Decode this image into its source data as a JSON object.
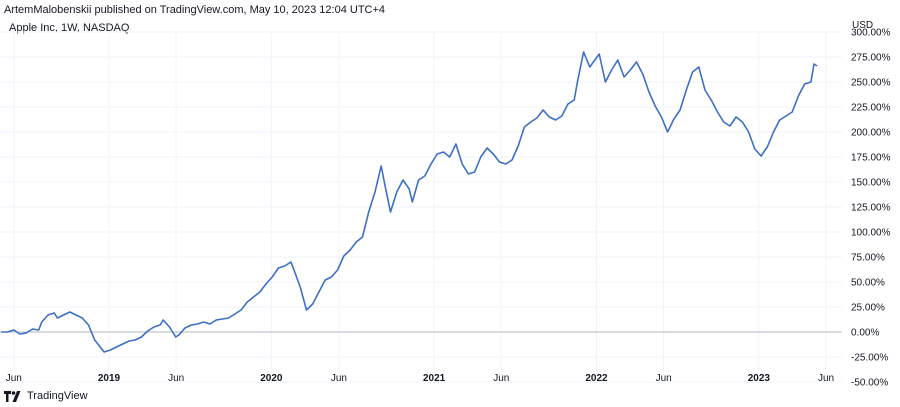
{
  "header": {
    "published_by": "ArtemMalobenskii published on TradingView.com, May 10, 2023 12:04 UTC+4"
  },
  "footer": {
    "brand": "TradingView",
    "brand_icon": "tradingview-logo-icon"
  },
  "chart_data": {
    "type": "line",
    "title": "Apple Inc, 1W, NASDAQ",
    "ylabel": "USD",
    "xlabel": "",
    "ylim": [
      -50,
      300
    ],
    "grid": true,
    "y_ticks": [
      "300.00%",
      "275.00%",
      "250.00%",
      "225.00%",
      "200.00%",
      "175.00%",
      "150.00%",
      "125.00%",
      "100.00%",
      "75.00%",
      "50.00%",
      "25.00%",
      "0.00%",
      "-25.00%",
      "-50.00%"
    ],
    "y_tick_values": [
      300,
      275,
      250,
      225,
      200,
      175,
      150,
      125,
      100,
      75,
      50,
      25,
      0,
      -25,
      -50
    ],
    "x_ticks": [
      {
        "label": "Jun",
        "date": "2018-06-01"
      },
      {
        "label": "2019",
        "date": "2019-01-01"
      },
      {
        "label": "Jun",
        "date": "2019-06-01"
      },
      {
        "label": "2020",
        "date": "2020-01-01"
      },
      {
        "label": "Jun",
        "date": "2020-06-01"
      },
      {
        "label": "2021",
        "date": "2021-01-01"
      },
      {
        "label": "Jun",
        "date": "2021-06-01"
      },
      {
        "label": "2022",
        "date": "2022-01-01"
      },
      {
        "label": "Jun",
        "date": "2022-06-01"
      },
      {
        "label": "2023",
        "date": "2023-01-01"
      },
      {
        "label": "Jun",
        "date": "2023-06-01"
      }
    ],
    "line_color": "#3d6fc5",
    "baseline": 0,
    "series": [
      {
        "points": [
          [
            "2018-05-04",
            0
          ],
          [
            "2018-05-18",
            0
          ],
          [
            "2018-06-01",
            2
          ],
          [
            "2018-06-15",
            -2
          ],
          [
            "2018-06-29",
            -1
          ],
          [
            "2018-07-13",
            3
          ],
          [
            "2018-07-27",
            2
          ],
          [
            "2018-08-03",
            10
          ],
          [
            "2018-08-17",
            17
          ],
          [
            "2018-08-31",
            19
          ],
          [
            "2018-09-07",
            14
          ],
          [
            "2018-09-21",
            17
          ],
          [
            "2018-10-05",
            20
          ],
          [
            "2018-10-19",
            17
          ],
          [
            "2018-11-02",
            14
          ],
          [
            "2018-11-16",
            7
          ],
          [
            "2018-11-30",
            -8
          ],
          [
            "2018-12-07",
            -12
          ],
          [
            "2018-12-21",
            -20
          ],
          [
            "2019-01-04",
            -18
          ],
          [
            "2019-01-18",
            -15
          ],
          [
            "2019-02-01",
            -12
          ],
          [
            "2019-02-15",
            -9
          ],
          [
            "2019-03-01",
            -8
          ],
          [
            "2019-03-15",
            -5
          ],
          [
            "2019-03-29",
            1
          ],
          [
            "2019-04-12",
            5
          ],
          [
            "2019-04-26",
            7
          ],
          [
            "2019-05-03",
            12
          ],
          [
            "2019-05-17",
            5
          ],
          [
            "2019-05-31",
            -5
          ],
          [
            "2019-06-07",
            -3
          ],
          [
            "2019-06-21",
            4
          ],
          [
            "2019-07-05",
            7
          ],
          [
            "2019-07-19",
            8
          ],
          [
            "2019-08-02",
            10
          ],
          [
            "2019-08-16",
            8
          ],
          [
            "2019-08-30",
            12
          ],
          [
            "2019-09-13",
            13
          ],
          [
            "2019-09-27",
            14
          ],
          [
            "2019-10-11",
            18
          ],
          [
            "2019-10-25",
            22
          ],
          [
            "2019-11-08",
            30
          ],
          [
            "2019-11-22",
            35
          ],
          [
            "2019-12-06",
            40
          ],
          [
            "2019-12-20",
            48
          ],
          [
            "2020-01-03",
            55
          ],
          [
            "2020-01-17",
            64
          ],
          [
            "2020-01-31",
            66
          ],
          [
            "2020-02-14",
            70
          ],
          [
            "2020-02-21",
            62
          ],
          [
            "2020-03-06",
            45
          ],
          [
            "2020-03-20",
            22
          ],
          [
            "2020-04-03",
            28
          ],
          [
            "2020-04-17",
            40
          ],
          [
            "2020-05-01",
            52
          ],
          [
            "2020-05-15",
            55
          ],
          [
            "2020-05-29",
            62
          ],
          [
            "2020-06-12",
            76
          ],
          [
            "2020-06-26",
            82
          ],
          [
            "2020-07-10",
            90
          ],
          [
            "2020-07-24",
            95
          ],
          [
            "2020-08-07",
            120
          ],
          [
            "2020-08-21",
            140
          ],
          [
            "2020-09-04",
            166
          ],
          [
            "2020-09-11",
            150
          ],
          [
            "2020-09-25",
            120
          ],
          [
            "2020-10-09",
            140
          ],
          [
            "2020-10-23",
            152
          ],
          [
            "2020-11-06",
            143
          ],
          [
            "2020-11-13",
            130
          ],
          [
            "2020-11-27",
            152
          ],
          [
            "2020-12-11",
            156
          ],
          [
            "2020-12-25",
            168
          ],
          [
            "2021-01-08",
            178
          ],
          [
            "2021-01-22",
            180
          ],
          [
            "2021-02-05",
            175
          ],
          [
            "2021-02-19",
            188
          ],
          [
            "2021-03-05",
            168
          ],
          [
            "2021-03-19",
            158
          ],
          [
            "2021-04-02",
            160
          ],
          [
            "2021-04-16",
            175
          ],
          [
            "2021-04-30",
            184
          ],
          [
            "2021-05-14",
            178
          ],
          [
            "2021-05-28",
            170
          ],
          [
            "2021-06-11",
            168
          ],
          [
            "2021-06-25",
            172
          ],
          [
            "2021-07-09",
            186
          ],
          [
            "2021-07-23",
            205
          ],
          [
            "2021-08-06",
            210
          ],
          [
            "2021-08-20",
            214
          ],
          [
            "2021-09-03",
            222
          ],
          [
            "2021-09-17",
            215
          ],
          [
            "2021-10-01",
            212
          ],
          [
            "2021-10-15",
            216
          ],
          [
            "2021-10-29",
            228
          ],
          [
            "2021-11-12",
            232
          ],
          [
            "2021-11-19",
            250
          ],
          [
            "2021-12-03",
            280
          ],
          [
            "2021-12-17",
            265
          ],
          [
            "2022-01-07",
            278
          ],
          [
            "2022-01-21",
            250
          ],
          [
            "2022-02-04",
            262
          ],
          [
            "2022-02-18",
            272
          ],
          [
            "2022-03-04",
            255
          ],
          [
            "2022-03-18",
            262
          ],
          [
            "2022-04-01",
            270
          ],
          [
            "2022-04-15",
            258
          ],
          [
            "2022-04-29",
            240
          ],
          [
            "2022-05-13",
            226
          ],
          [
            "2022-05-27",
            215
          ],
          [
            "2022-06-10",
            200
          ],
          [
            "2022-06-24",
            213
          ],
          [
            "2022-07-08",
            222
          ],
          [
            "2022-07-22",
            242
          ],
          [
            "2022-08-05",
            260
          ],
          [
            "2022-08-19",
            265
          ],
          [
            "2022-09-02",
            242
          ],
          [
            "2022-09-16",
            232
          ],
          [
            "2022-09-30",
            220
          ],
          [
            "2022-10-14",
            210
          ],
          [
            "2022-10-28",
            206
          ],
          [
            "2022-11-11",
            215
          ],
          [
            "2022-11-25",
            210
          ],
          [
            "2022-12-09",
            200
          ],
          [
            "2022-12-23",
            183
          ],
          [
            "2023-01-06",
            176
          ],
          [
            "2023-01-20",
            185
          ],
          [
            "2023-02-03",
            200
          ],
          [
            "2023-02-17",
            212
          ],
          [
            "2023-03-03",
            216
          ],
          [
            "2023-03-17",
            220
          ],
          [
            "2023-03-31",
            236
          ],
          [
            "2023-04-14",
            248
          ],
          [
            "2023-04-28",
            250
          ],
          [
            "2023-05-05",
            268
          ],
          [
            "2023-05-12",
            266
          ]
        ]
      }
    ]
  }
}
